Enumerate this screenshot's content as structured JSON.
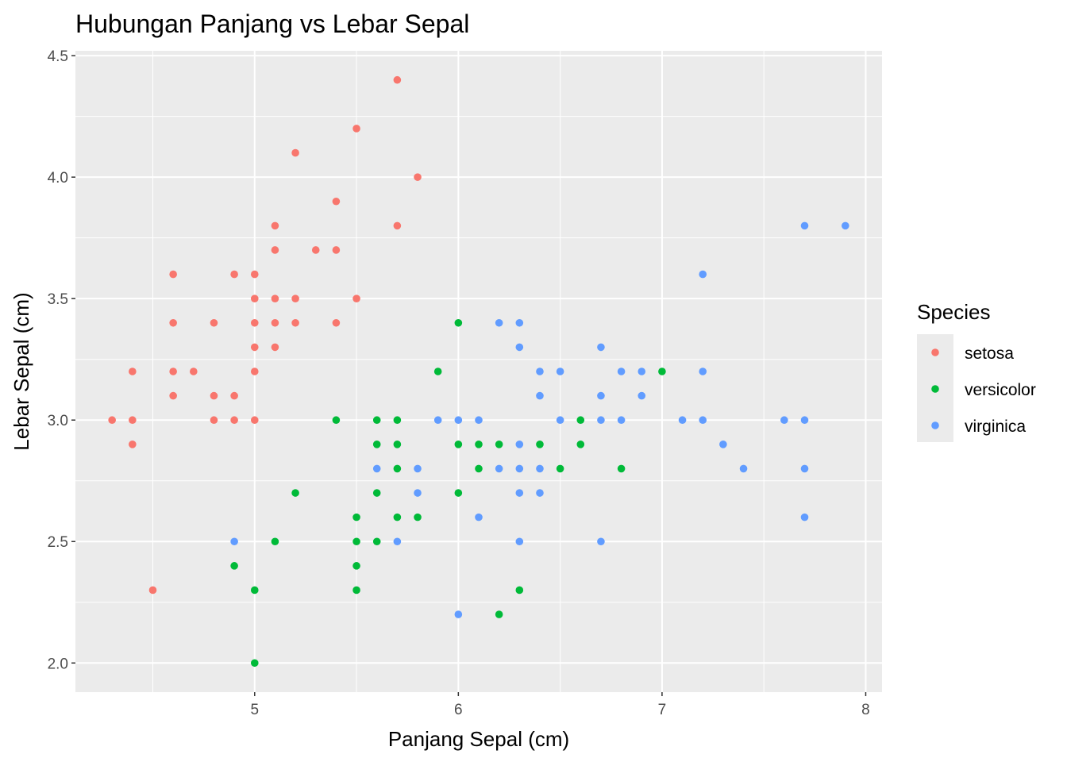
{
  "chart_data": {
    "type": "scatter",
    "title": "Hubungan Panjang vs Lebar Sepal",
    "xlabel": "Panjang Sepal (cm)",
    "ylabel": "Lebar Sepal (cm)",
    "xlim": [
      4.12,
      8.08
    ],
    "ylim": [
      1.88,
      4.52
    ],
    "x_ticks": [
      5,
      6,
      7,
      8
    ],
    "y_ticks": [
      2.0,
      2.5,
      3.0,
      3.5,
      4.0,
      4.5
    ],
    "x_tick_labels": [
      "5",
      "6",
      "7",
      "8"
    ],
    "y_tick_labels": [
      "2.0",
      "2.5",
      "3.0",
      "3.5",
      "4.0",
      "4.5"
    ],
    "grid": true,
    "legend": {
      "title": "Species",
      "position": "right"
    },
    "colors": {
      "panel": "#ebebeb",
      "grid": "#ffffff"
    },
    "series": [
      {
        "name": "setosa",
        "color": "#f8766d",
        "points": [
          [
            4.3,
            3.0
          ],
          [
            4.4,
            3.2
          ],
          [
            4.4,
            3.0
          ],
          [
            4.4,
            2.9
          ],
          [
            4.5,
            2.3
          ],
          [
            4.6,
            3.6
          ],
          [
            4.6,
            3.4
          ],
          [
            4.6,
            3.2
          ],
          [
            4.6,
            3.1
          ],
          [
            4.7,
            3.2
          ],
          [
            4.8,
            3.4
          ],
          [
            4.8,
            3.1
          ],
          [
            4.8,
            3.0
          ],
          [
            4.9,
            3.6
          ],
          [
            4.9,
            3.1
          ],
          [
            4.9,
            3.0
          ],
          [
            5.0,
            3.6
          ],
          [
            5.0,
            3.5
          ],
          [
            5.0,
            3.4
          ],
          [
            5.0,
            3.3
          ],
          [
            5.0,
            3.2
          ],
          [
            5.0,
            3.0
          ],
          [
            5.1,
            3.8
          ],
          [
            5.1,
            3.7
          ],
          [
            5.1,
            3.5
          ],
          [
            5.1,
            3.4
          ],
          [
            5.1,
            3.3
          ],
          [
            5.2,
            4.1
          ],
          [
            5.2,
            3.5
          ],
          [
            5.2,
            3.4
          ],
          [
            5.3,
            3.7
          ],
          [
            5.4,
            3.9
          ],
          [
            5.4,
            3.7
          ],
          [
            5.4,
            3.4
          ],
          [
            5.5,
            4.2
          ],
          [
            5.5,
            3.5
          ],
          [
            5.7,
            4.4
          ],
          [
            5.7,
            3.8
          ],
          [
            5.8,
            4.0
          ]
        ]
      },
      {
        "name": "versicolor",
        "color": "#00ba38",
        "points": [
          [
            4.9,
            2.4
          ],
          [
            5.0,
            2.3
          ],
          [
            5.0,
            2.0
          ],
          [
            5.1,
            2.5
          ],
          [
            5.2,
            2.7
          ],
          [
            5.4,
            3.0
          ],
          [
            5.5,
            2.6
          ],
          [
            5.5,
            2.5
          ],
          [
            5.5,
            2.4
          ],
          [
            5.5,
            2.3
          ],
          [
            5.6,
            3.0
          ],
          [
            5.6,
            2.9
          ],
          [
            5.6,
            2.7
          ],
          [
            5.6,
            2.5
          ],
          [
            5.7,
            3.0
          ],
          [
            5.7,
            2.9
          ],
          [
            5.7,
            2.8
          ],
          [
            5.7,
            2.6
          ],
          [
            5.8,
            2.6
          ],
          [
            5.9,
            3.2
          ],
          [
            6.0,
            3.4
          ],
          [
            6.0,
            2.9
          ],
          [
            6.0,
            2.7
          ],
          [
            6.1,
            2.9
          ],
          [
            6.1,
            2.8
          ],
          [
            6.2,
            2.9
          ],
          [
            6.2,
            2.2
          ],
          [
            6.3,
            2.3
          ],
          [
            6.4,
            2.9
          ],
          [
            6.5,
            2.8
          ],
          [
            6.6,
            3.0
          ],
          [
            6.6,
            2.9
          ],
          [
            6.8,
            2.8
          ],
          [
            7.0,
            3.2
          ]
        ]
      },
      {
        "name": "virginica",
        "color": "#619cff",
        "points": [
          [
            4.9,
            2.5
          ],
          [
            5.6,
            2.8
          ],
          [
            5.7,
            2.5
          ],
          [
            5.8,
            2.8
          ],
          [
            5.8,
            2.7
          ],
          [
            5.9,
            3.0
          ],
          [
            6.0,
            3.0
          ],
          [
            6.0,
            2.2
          ],
          [
            6.1,
            3.0
          ],
          [
            6.1,
            2.6
          ],
          [
            6.2,
            3.4
          ],
          [
            6.2,
            2.8
          ],
          [
            6.3,
            3.4
          ],
          [
            6.3,
            3.3
          ],
          [
            6.3,
            2.9
          ],
          [
            6.3,
            2.8
          ],
          [
            6.3,
            2.7
          ],
          [
            6.3,
            2.5
          ],
          [
            6.4,
            3.2
          ],
          [
            6.4,
            3.1
          ],
          [
            6.4,
            2.8
          ],
          [
            6.4,
            2.7
          ],
          [
            6.5,
            3.2
          ],
          [
            6.5,
            3.0
          ],
          [
            6.7,
            3.3
          ],
          [
            6.7,
            3.1
          ],
          [
            6.7,
            3.0
          ],
          [
            6.7,
            2.5
          ],
          [
            6.8,
            3.2
          ],
          [
            6.8,
            3.0
          ],
          [
            6.9,
            3.2
          ],
          [
            6.9,
            3.1
          ],
          [
            7.1,
            3.0
          ],
          [
            7.2,
            3.6
          ],
          [
            7.2,
            3.2
          ],
          [
            7.2,
            3.0
          ],
          [
            7.3,
            2.9
          ],
          [
            7.4,
            2.8
          ],
          [
            7.6,
            3.0
          ],
          [
            7.7,
            3.8
          ],
          [
            7.7,
            3.0
          ],
          [
            7.7,
            2.8
          ],
          [
            7.7,
            2.6
          ],
          [
            7.9,
            3.8
          ]
        ]
      }
    ]
  }
}
